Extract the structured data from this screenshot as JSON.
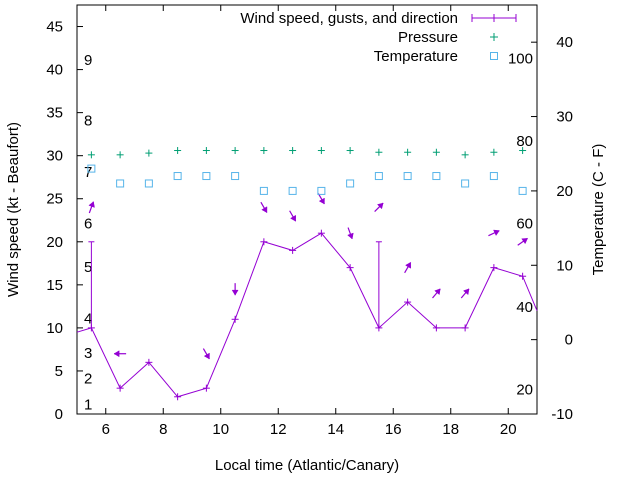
{
  "chart_data": {
    "type": "line",
    "title": "",
    "xlabel": "Local time (Atlantic/Canary)",
    "ylabel_left": "Wind speed (kt - Beaufort)",
    "ylabel_right": "Temperature (C - F)",
    "xlim": [
      5,
      21
    ],
    "ylim_left": [
      0,
      47.5
    ],
    "ylim_right": [
      -10,
      45
    ],
    "x_ticks": [
      6,
      8,
      10,
      12,
      14,
      16,
      18,
      20
    ],
    "x_tick_labels": [
      "6",
      "8",
      "10",
      "12",
      "14",
      "16",
      "18",
      "20"
    ],
    "y_left_ticks": [
      0,
      5,
      10,
      15,
      20,
      25,
      30,
      35,
      40,
      45
    ],
    "y_left_tick_labels": [
      "0",
      "5",
      "10",
      "15",
      "20",
      "25",
      "30",
      "35",
      "40",
      "45"
    ],
    "y_right_ticks": [
      -10,
      0,
      10,
      20,
      30,
      40
    ],
    "y_right_tick_labels": [
      "-10",
      "0",
      "10",
      "20",
      "30",
      "40"
    ],
    "beaufort_labels": [
      {
        "text": "1",
        "y": 1.1
      },
      {
        "text": "2",
        "y": 4.1
      },
      {
        "text": "3",
        "y": 7.1
      },
      {
        "text": "4",
        "y": 11.1
      },
      {
        "text": "5",
        "y": 17.1
      },
      {
        "text": "6",
        "y": 22.1
      },
      {
        "text": "7",
        "y": 28.1
      },
      {
        "text": "8",
        "y": 34.1
      },
      {
        "text": "9",
        "y": 41.1
      }
    ],
    "fahrenheit_labels": [
      {
        "text": "20",
        "y": -6.7
      },
      {
        "text": "40",
        "y": 4.4
      },
      {
        "text": "60",
        "y": 15.6
      },
      {
        "text": "80",
        "y": 26.7
      },
      {
        "text": "100",
        "y": 37.8
      }
    ],
    "legend": {
      "position": "top-right"
    },
    "series": [
      {
        "name": "Wind speed, gusts, and direction",
        "color": "#9400d3",
        "axis": "left",
        "x": [
          5.5,
          6.5,
          7.5,
          8.5,
          9.5,
          10.5,
          11.5,
          12.5,
          13.5,
          14.5,
          15.5,
          16.5,
          17.5,
          18.5,
          19.5,
          20.5
        ],
        "values": [
          10,
          3,
          6,
          2,
          3,
          11,
          20,
          19,
          21,
          17,
          10,
          13,
          10,
          10,
          17,
          16
        ],
        "gusts": [
          20,
          null,
          null,
          null,
          null,
          null,
          null,
          null,
          null,
          null,
          20,
          null,
          null,
          null,
          null,
          null
        ],
        "direction_arrows": [
          {
            "x": 5.5,
            "y": 24,
            "angle": 200
          },
          {
            "x": 6.5,
            "y": 7,
            "angle": 90
          },
          {
            "x": 9.5,
            "y": 7,
            "angle": 330
          },
          {
            "x": 10.5,
            "y": 14.5,
            "angle": 0
          },
          {
            "x": 11.5,
            "y": 24,
            "angle": 330
          },
          {
            "x": 12.5,
            "y": 23,
            "angle": 330
          },
          {
            "x": 13.5,
            "y": 25,
            "angle": 330
          },
          {
            "x": 14.5,
            "y": 21,
            "angle": 340
          },
          {
            "x": 15.5,
            "y": 24,
            "angle": 225
          },
          {
            "x": 16.5,
            "y": 17,
            "angle": 210
          },
          {
            "x": 17.5,
            "y": 14,
            "angle": 220
          },
          {
            "x": 18.5,
            "y": 14,
            "angle": 220
          },
          {
            "x": 19.5,
            "y": 21,
            "angle": 245
          },
          {
            "x": 20.5,
            "y": 20,
            "angle": 235
          }
        ],
        "edge_points": [
          {
            "x": 5.0,
            "y": 9.5
          },
          {
            "x": 21.0,
            "y": 12
          }
        ]
      },
      {
        "name": "Pressure",
        "color": "#009e73",
        "axis": "left",
        "x": [
          5.5,
          6.5,
          7.5,
          8.5,
          9.5,
          10.5,
          11.5,
          12.5,
          13.5,
          14.5,
          15.5,
          16.5,
          17.5,
          18.5,
          19.5,
          20.5
        ],
        "values": [
          30.1,
          30.1,
          30.3,
          30.6,
          30.6,
          30.6,
          30.6,
          30.6,
          30.6,
          30.6,
          30.4,
          30.4,
          30.4,
          30.1,
          30.4,
          30.6
        ]
      },
      {
        "name": "Temperature",
        "color": "#56b4e9",
        "axis": "right",
        "x": [
          5.5,
          6.5,
          7.5,
          8.5,
          9.5,
          10.5,
          11.5,
          12.5,
          13.5,
          14.5,
          15.5,
          16.5,
          17.5,
          18.5,
          19.5,
          20.5
        ],
        "values": [
          23,
          21,
          21,
          22,
          22,
          22,
          20,
          20,
          20,
          21,
          22,
          22,
          22,
          21,
          22,
          20
        ]
      }
    ]
  }
}
